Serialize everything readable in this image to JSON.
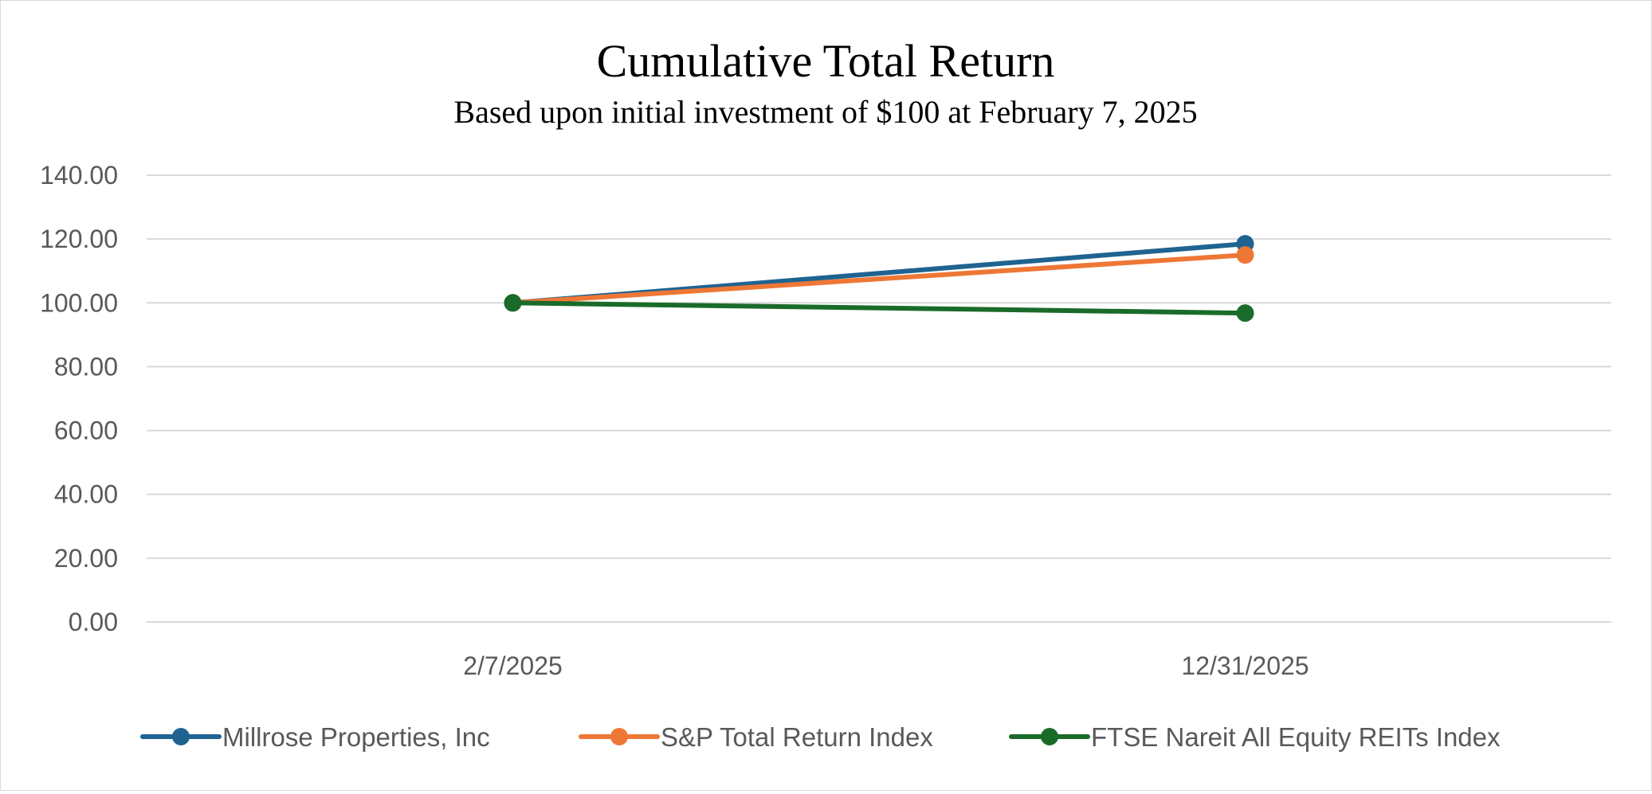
{
  "chart_data": {
    "type": "line",
    "title": "Cumulative Total Return",
    "subtitle": "Based upon initial investment of $100 at February 7, 2025",
    "xlabel": "",
    "ylabel": "",
    "categories": [
      "2/7/2025",
      "12/31/2025"
    ],
    "ylim": [
      0,
      140
    ],
    "yticks": [
      0,
      20,
      40,
      60,
      80,
      100,
      120,
      140
    ],
    "ytick_labels": [
      "0.00",
      "20.00",
      "40.00",
      "60.00",
      "80.00",
      "100.00",
      "120.00",
      "140.00"
    ],
    "grid": true,
    "legend_position": "bottom",
    "series": [
      {
        "name": "Millrose Properties, Inc",
        "values": [
          100,
          118.5
        ],
        "color": "#1f6391"
      },
      {
        "name": "S&P Total Return Index",
        "values": [
          100,
          115
        ],
        "color": "#ee7736"
      },
      {
        "name": "FTSE Nareit All Equity REITs Index",
        "values": [
          100,
          96.8
        ],
        "color": "#1a6b2a"
      }
    ]
  }
}
